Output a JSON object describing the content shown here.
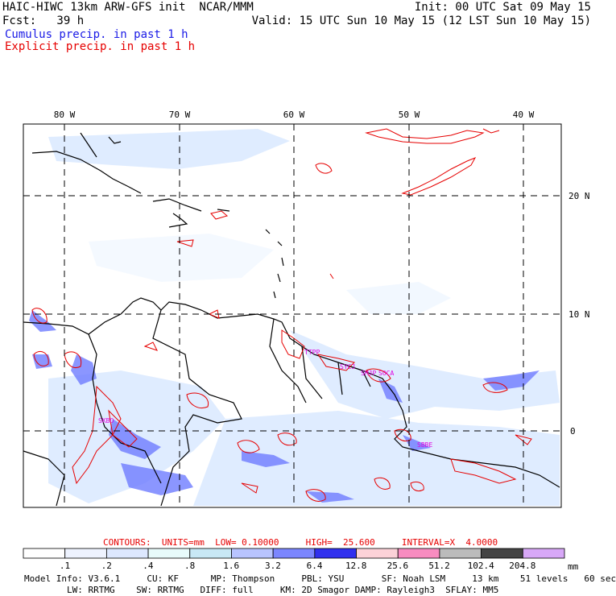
{
  "header": {
    "title": "HAIC-HIWC 13km ARW-GFS init  NCAR/MMM",
    "fcst": "Fcst:   39 h",
    "init": "Init: 00 UTC Sat 09 May 15",
    "valid": "Valid: 15 UTC Sun 10 May 15 (12 LST Sun 10 May 15)",
    "cumulus_label": "Cumulus precip. in past 1 h",
    "explicit_label": "Explicit precip. in past 1 h"
  },
  "map": {
    "lon_labels": [
      "80 W",
      "70 W",
      "60 W",
      "50 W",
      "40 W"
    ],
    "lat_labels": [
      "20 N",
      "10 N",
      "0"
    ],
    "station_labels": [
      "SKBO",
      "TTPP",
      "SYCJ",
      "SMJP",
      "SOCA",
      "SBBE"
    ],
    "colors": {
      "explicit_contour": "#e60000",
      "coastline": "#000000",
      "label_magenta": "#e000e0",
      "cumulus_light": "#cfe3ff",
      "cumulus_mid": "#7b86ff",
      "cumulus_dark": "#4a52ff"
    }
  },
  "contours_line": "CONTOURS:  UNITS=mm  LOW= 0.10000     HIGH=  25.600     INTERVAL=X  4.0000",
  "colorbar": {
    "labels": [
      ".1",
      ".2",
      ".4",
      ".8",
      "1.6",
      "3.2",
      "6.4",
      "12.8",
      "25.6",
      "51.2",
      "102.4",
      "204.8"
    ],
    "units": "mm",
    "colors": [
      "#ffffff",
      "#eef3ff",
      "#dde8ff",
      "#e8fbfb",
      "#c8e8f5",
      "#b8c4ff",
      "#7b86ff",
      "#3030ee",
      "#fcd2d8",
      "#f88cc0",
      "#bbbbbb",
      "#444444",
      "#d8a8f8"
    ]
  },
  "footer": {
    "line1": "Model Info: V3.6.1     CU: KF      MP: Thompson     PBL: YSU       SF: Noah LSM     13 km    51 levels   60 sec",
    "line2": "        LW: RRTMG    SW: RRTMG   DIFF: full     KM: 2D Smagor DAMP: Rayleigh3  SFLAY: MM5"
  }
}
